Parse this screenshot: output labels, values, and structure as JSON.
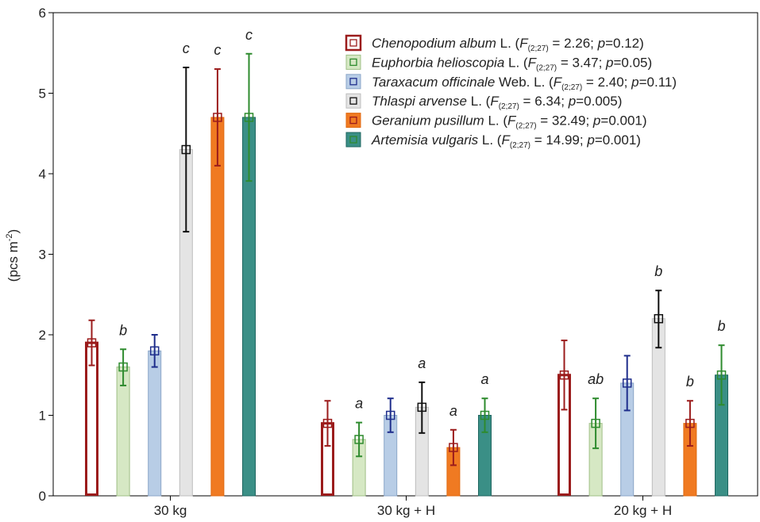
{
  "chart_data": {
    "type": "bar",
    "title": "",
    "xlabel": "",
    "ylabel": "(pcs m⁻²)",
    "ylim": [
      0,
      6
    ],
    "yticks": [
      "0",
      "1",
      "2",
      "3",
      "4",
      "5",
      "6"
    ],
    "grid": false,
    "legend_position": "top-right",
    "categories": [
      "30 kg",
      "30 kg + H",
      "20 kg + H"
    ],
    "series": [
      {
        "name": "Chenopodium album",
        "legend_parts": [
          {
            "t": "Chenopodium album",
            "i": true
          },
          {
            "t": " L. ("
          },
          {
            "t": "F",
            "i": true
          },
          {
            "t": "(2;27)",
            "sub": true
          },
          {
            "t": " = 2.26; "
          },
          {
            "t": "p",
            "i": true
          },
          {
            "t": "=0.12)"
          }
        ],
        "fill": "#ffffff",
        "stroke": "#9b1c1c",
        "err_color": "#9b1c1c",
        "marker": "#9b1c1c",
        "stroke_width": 3,
        "values": [
          1.9,
          0.9,
          1.5
        ],
        "err_low": [
          1.62,
          0.62,
          1.07
        ],
        "err_high": [
          2.18,
          1.18,
          1.93
        ],
        "sig": [
          "",
          "",
          ""
        ]
      },
      {
        "name": "Euphorbia helioscopia",
        "legend_parts": [
          {
            "t": "Euphorbia helioscopia",
            "i": true
          },
          {
            "t": " L. ("
          },
          {
            "t": "F",
            "i": true
          },
          {
            "t": "(2;27)",
            "sub": true
          },
          {
            "t": " = 3.47; "
          },
          {
            "t": "p",
            "i": true
          },
          {
            "t": "=0.05)"
          }
        ],
        "fill": "#d6e8c4",
        "stroke": "#9fbf86",
        "err_color": "#2e8b2e",
        "marker": "#2e8b2e",
        "stroke_width": 1,
        "values": [
          1.6,
          0.7,
          0.9
        ],
        "err_low": [
          1.37,
          0.49,
          0.59
        ],
        "err_high": [
          1.82,
          0.91,
          1.21
        ],
        "sig": [
          "b",
          "a",
          "ab"
        ]
      },
      {
        "name": "Taraxacum officinale",
        "legend_parts": [
          {
            "t": "Taraxacum officinale",
            "i": true
          },
          {
            "t": "  Web. L. ("
          },
          {
            "t": "F",
            "i": true
          },
          {
            "t": "(2;27)",
            "sub": true
          },
          {
            "t": " = 2.40; "
          },
          {
            "t": "p",
            "i": true
          },
          {
            "t": "=0.11)"
          }
        ],
        "fill": "#b8cde6",
        "stroke": "#8ba6c8",
        "err_color": "#1f2e8c",
        "marker": "#1f2e8c",
        "stroke_width": 1,
        "values": [
          1.8,
          1.0,
          1.4
        ],
        "err_low": [
          1.6,
          0.79,
          1.06
        ],
        "err_high": [
          2.0,
          1.21,
          1.74
        ],
        "sig": [
          "",
          "",
          ""
        ]
      },
      {
        "name": "Thlaspi arvense",
        "legend_parts": [
          {
            "t": "Thlaspi arvense",
            "i": true
          },
          {
            "t": " L. ("
          },
          {
            "t": "F",
            "i": true
          },
          {
            "t": "(2;27)",
            "sub": true
          },
          {
            "t": " = 6.34; "
          },
          {
            "t": "p",
            "i": true
          },
          {
            "t": "=0.005)"
          }
        ],
        "fill": "#e4e4e4",
        "stroke": "#bdbdbd",
        "err_color": "#111111",
        "marker": "#111111",
        "stroke_width": 1,
        "values": [
          4.3,
          1.1,
          2.2
        ],
        "err_low": [
          3.28,
          0.78,
          1.84
        ],
        "err_high": [
          5.32,
          1.41,
          2.55
        ],
        "sig": [
          "c",
          "a",
          "b"
        ]
      },
      {
        "name": "Geranium pusillum",
        "legend_parts": [
          {
            "t": "Geranium pusillum",
            "i": true
          },
          {
            "t": " L. ("
          },
          {
            "t": "F",
            "i": true
          },
          {
            "t": "(2;27)",
            "sub": true
          },
          {
            "t": " = 32.49; "
          },
          {
            "t": "p",
            "i": true
          },
          {
            "t": "=0.001)"
          }
        ],
        "fill": "#f07a22",
        "stroke": "#e06a10",
        "err_color": "#9b1c1c",
        "marker": "#9b1c1c",
        "stroke_width": 1,
        "values": [
          4.7,
          0.6,
          0.9
        ],
        "err_low": [
          4.1,
          0.38,
          0.62
        ],
        "err_high": [
          5.3,
          0.82,
          1.18
        ],
        "sig": [
          "c",
          "a",
          "b"
        ]
      },
      {
        "name": "Artemisia vulgaris",
        "legend_parts": [
          {
            "t": "Artemisia vulgaris",
            "i": true
          },
          {
            "t": " L. ("
          },
          {
            "t": "F",
            "i": true
          },
          {
            "t": "(2;27)",
            "sub": true
          },
          {
            "t": " = 14.99; "
          },
          {
            "t": "p",
            "i": true
          },
          {
            "t": "=0.001)"
          }
        ],
        "fill": "#3a8f86",
        "stroke": "#1f6660",
        "err_color": "#2e8b2e",
        "marker": "#2e8b2e",
        "stroke_width": 1,
        "values": [
          4.7,
          1.0,
          1.5
        ],
        "err_low": [
          3.91,
          0.79,
          1.13
        ],
        "err_high": [
          5.49,
          1.21,
          1.87
        ],
        "sig": [
          "c",
          "a",
          "b"
        ]
      }
    ]
  }
}
